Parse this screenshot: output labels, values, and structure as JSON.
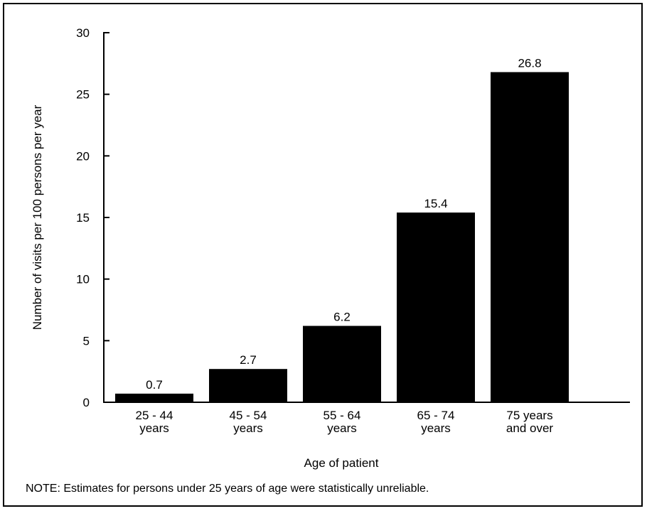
{
  "chart_data": {
    "type": "bar",
    "title": "",
    "xlabel": "Age of patient",
    "ylabel": "Number of visits per 100 persons per year",
    "ylim": [
      0,
      30
    ],
    "yticks": [
      0,
      5,
      10,
      15,
      20,
      25,
      30
    ],
    "categories": [
      [
        "25 - 44",
        "years"
      ],
      [
        "45 - 54",
        "years"
      ],
      [
        "55 - 64",
        "years"
      ],
      [
        "65 - 74",
        "years"
      ],
      [
        "75 years",
        "and over"
      ]
    ],
    "values": [
      0.7,
      2.7,
      6.2,
      15.4,
      26.8
    ],
    "data_labels": [
      "0.7",
      "2.7",
      "6.2",
      "15.4",
      "26.8"
    ],
    "bar_color": "#000000",
    "grid": false
  },
  "note": "NOTE: Estimates for persons under 25 years of age were statistically unreliable."
}
